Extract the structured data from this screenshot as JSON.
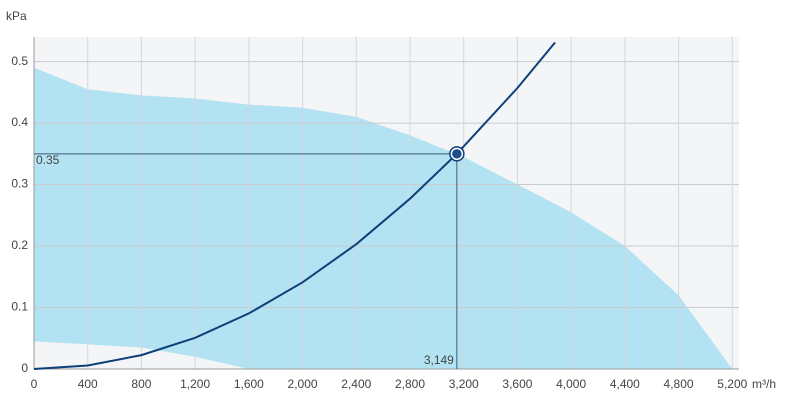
{
  "chart_data": {
    "type": "fan-curve",
    "y_label": "kPa",
    "x_label": "m³/h",
    "xlim": [
      0,
      5250
    ],
    "ylim": [
      0,
      0.54
    ],
    "xticks": [
      0,
      400,
      800,
      {
        "value": 1200,
        "label": "1,200"
      },
      {
        "value": 1600,
        "label": "1,600"
      },
      {
        "value": 2000,
        "label": "2,000"
      },
      {
        "value": 2400,
        "label": "2,400"
      },
      {
        "value": 2800,
        "label": "2,800"
      },
      {
        "value": 3200,
        "label": "3,200"
      },
      {
        "value": 3600,
        "label": "3,600"
      },
      {
        "value": 4000,
        "label": "4,000"
      },
      {
        "value": 4400,
        "label": "4,400"
      },
      {
        "value": 4800,
        "label": "4,800"
      },
      {
        "value": 5200,
        "label": "5,200"
      }
    ],
    "yticks": [
      0,
      0.1,
      0.2,
      0.3,
      0.4,
      0.5
    ],
    "grid": true,
    "area": {
      "color": "#b3e3f2",
      "upper_x": [
        0,
        400,
        800,
        1200,
        1600,
        2000,
        2400,
        2800,
        3200,
        3600,
        4000,
        4400,
        4800,
        5200
      ],
      "upper_y": [
        0.49,
        0.455,
        0.445,
        0.44,
        0.43,
        0.425,
        0.41,
        0.38,
        0.345,
        0.3,
        0.255,
        0.2,
        0.12,
        0
      ],
      "lower_x": [
        0,
        400,
        800,
        1200,
        1600
      ],
      "lower_y": [
        0.045,
        0.04,
        0.035,
        0.02,
        0
      ]
    },
    "system_curve": {
      "color": "#0d3f7a",
      "x": [
        0,
        400,
        800,
        1200,
        1600,
        2000,
        2400,
        2800,
        3149,
        3600,
        3880
      ],
      "values": [
        0,
        0.00565,
        0.0226,
        0.0508,
        0.0904,
        0.141,
        0.203,
        0.277,
        0.35,
        0.457,
        0.531
      ]
    },
    "operating_point": {
      "x": 3149,
      "x_label": "3,149",
      "y": 0.35
    }
  }
}
